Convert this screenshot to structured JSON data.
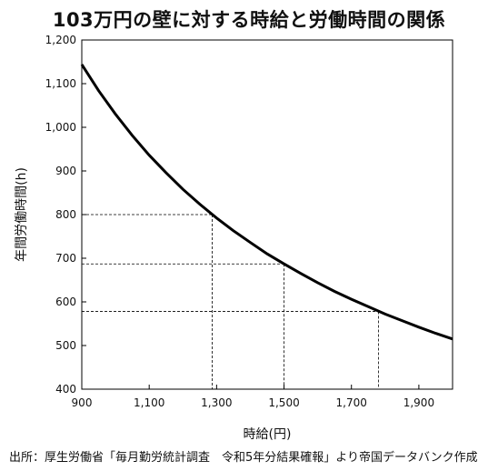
{
  "chart_data": {
    "type": "line",
    "title": "103万円の壁に対する時給と労働時間の関係",
    "xlabel": "時給(円)",
    "ylabel": "年間労働時間(h)",
    "xlim": [
      900,
      2000
    ],
    "ylim": [
      400,
      1200
    ],
    "xticks": [
      900,
      1100,
      1300,
      1500,
      1700,
      1900
    ],
    "xtick_labels": [
      "900",
      "1,100",
      "1,300",
      "1,500",
      "1,700",
      "1,900"
    ],
    "yticks": [
      400,
      500,
      600,
      700,
      800,
      900,
      1000,
      1100,
      1200
    ],
    "ytick_labels": [
      "400",
      "500",
      "600",
      "700",
      "800",
      "900",
      "1,000",
      "1,100",
      "1,200"
    ],
    "series": [
      {
        "x": [
          900,
          950,
          1000,
          1050,
          1100,
          1150,
          1200,
          1250,
          1300,
          1350,
          1400,
          1450,
          1500,
          1550,
          1600,
          1650,
          1700,
          1750,
          1800,
          1850,
          1900,
          1950,
          2000
        ],
        "values": [
          1144,
          1084,
          1030,
          981,
          936,
          896,
          858,
          824,
          792,
          763,
          736,
          710,
          687,
          665,
          644,
          624,
          606,
          589,
          572,
          557,
          542,
          528,
          515
        ]
      }
    ],
    "reference_points": [
      {
        "x": 1287,
        "y": 800
      },
      {
        "x": 1500,
        "y": 687
      },
      {
        "x": 1780,
        "y": 578
      }
    ],
    "grid": false,
    "line_color": "#000000"
  },
  "source_note": "出所：厚生労働省「毎月勤労統計調査　令和5年分結果確報」より帝国データバンク作成"
}
